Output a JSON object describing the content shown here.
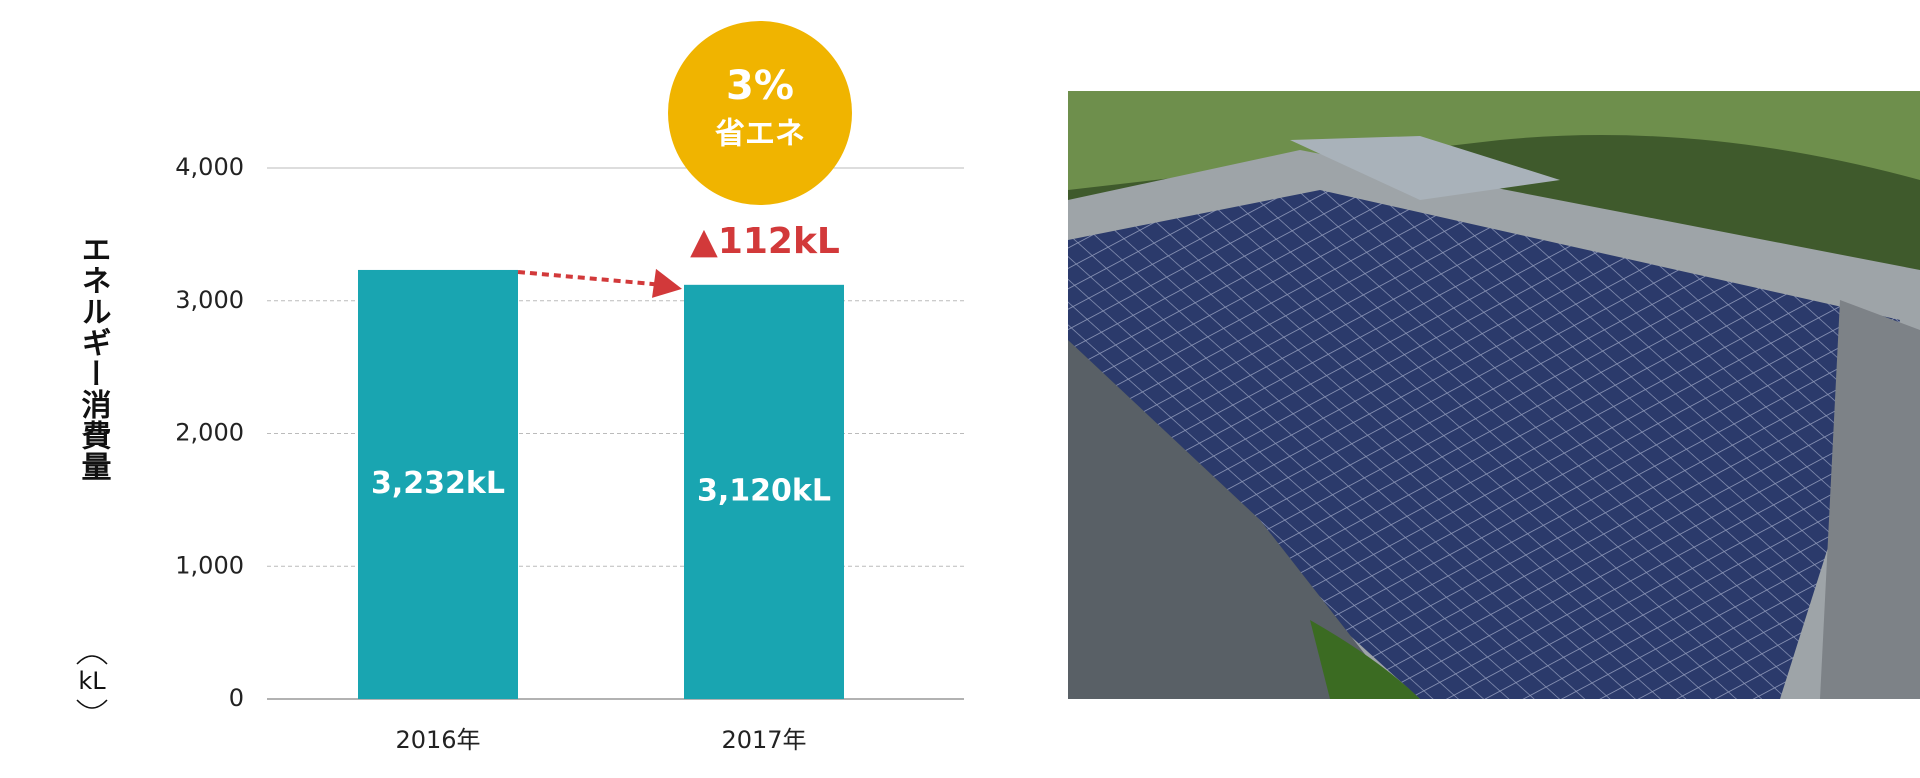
{
  "chart_data": {
    "type": "bar",
    "ylabel": "エネルギー消費量",
    "y_unit": "kL",
    "categories": [
      "2016年",
      "2017年"
    ],
    "values": [
      3232,
      3120
    ],
    "value_labels": [
      "3,232kL",
      "3,120kL"
    ],
    "color": "#19a5b1",
    "ylim": [
      0,
      4000
    ],
    "yticks": [
      0,
      {
        "value": 1000,
        "label": "1,000"
      },
      {
        "value": 2000,
        "label": "2,000"
      },
      {
        "value": 3000,
        "label": "3,000"
      },
      {
        "value": 4000,
        "label": "4,000"
      }
    ],
    "grid": true,
    "annotations": {
      "badge_value": "3%",
      "badge_label": "省エネ",
      "change": "▲112kL"
    },
    "badge_color": "#f0b400",
    "change_color": "#d2393a"
  }
}
